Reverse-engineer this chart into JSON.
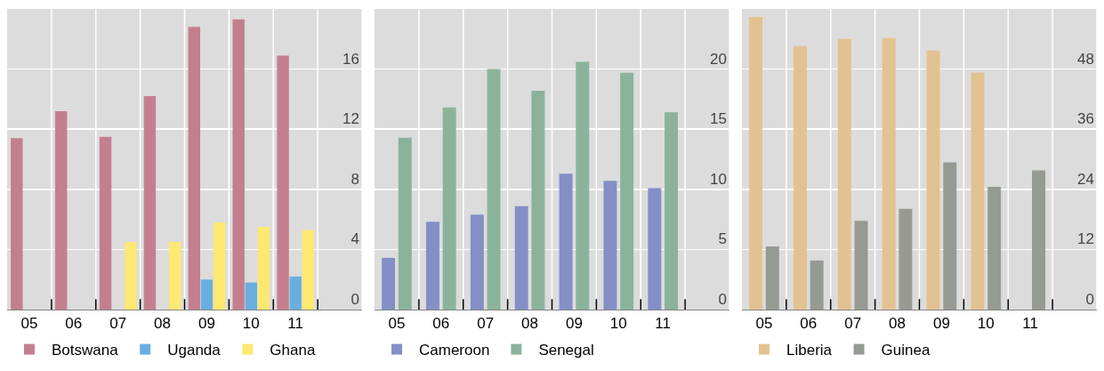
{
  "chart_data": [
    {
      "type": "bar",
      "categories": [
        "05",
        "06",
        "07",
        "08",
        "09",
        "10",
        "11"
      ],
      "ylim": [
        0,
        20
      ],
      "yticks": [
        0,
        4,
        8,
        12,
        16
      ],
      "grid": true,
      "legend": "bottom",
      "series": [
        {
          "name": "Botswana",
          "color": "#c47f8f",
          "values": [
            11.4,
            13.2,
            11.5,
            14.2,
            18.8,
            19.3,
            16.9
          ]
        },
        {
          "name": "Uganda",
          "color": "#6aaee0",
          "values": [
            null,
            null,
            null,
            null,
            2.0,
            1.8,
            2.2
          ]
        },
        {
          "name": "Ghana",
          "color": "#fde872",
          "values": [
            null,
            null,
            4.5,
            4.5,
            5.8,
            5.5,
            5.3
          ]
        }
      ]
    },
    {
      "type": "bar",
      "categories": [
        "05",
        "06",
        "07",
        "08",
        "09",
        "10",
        "11"
      ],
      "ylim": [
        0,
        25
      ],
      "yticks": [
        0,
        5,
        10,
        15,
        20
      ],
      "grid": true,
      "legend": "bottom",
      "series": [
        {
          "name": "Cameroon",
          "color": "#838fc6",
          "values": [
            4.3,
            7.3,
            7.9,
            8.6,
            11.3,
            10.7,
            10.1
          ]
        },
        {
          "name": "Senegal",
          "color": "#8bb39b",
          "values": [
            14.3,
            16.8,
            20.0,
            18.2,
            20.6,
            19.7,
            16.4
          ]
        }
      ]
    },
    {
      "type": "bar",
      "categories": [
        "05",
        "06",
        "07",
        "08",
        "09",
        "10",
        "11"
      ],
      "ylim": [
        0,
        60
      ],
      "yticks": [
        0,
        12,
        24,
        36,
        48
      ],
      "grid": true,
      "legend": "bottom",
      "series": [
        {
          "name": "Liberia",
          "color": "#e3c291",
          "values": [
            58.4,
            52.6,
            54.0,
            54.2,
            51.7,
            47.3,
            null
          ]
        },
        {
          "name": "Guinea",
          "color": "#959a93",
          "values": [
            12.6,
            9.8,
            17.7,
            20.1,
            29.4,
            24.5,
            27.8
          ]
        }
      ]
    }
  ]
}
